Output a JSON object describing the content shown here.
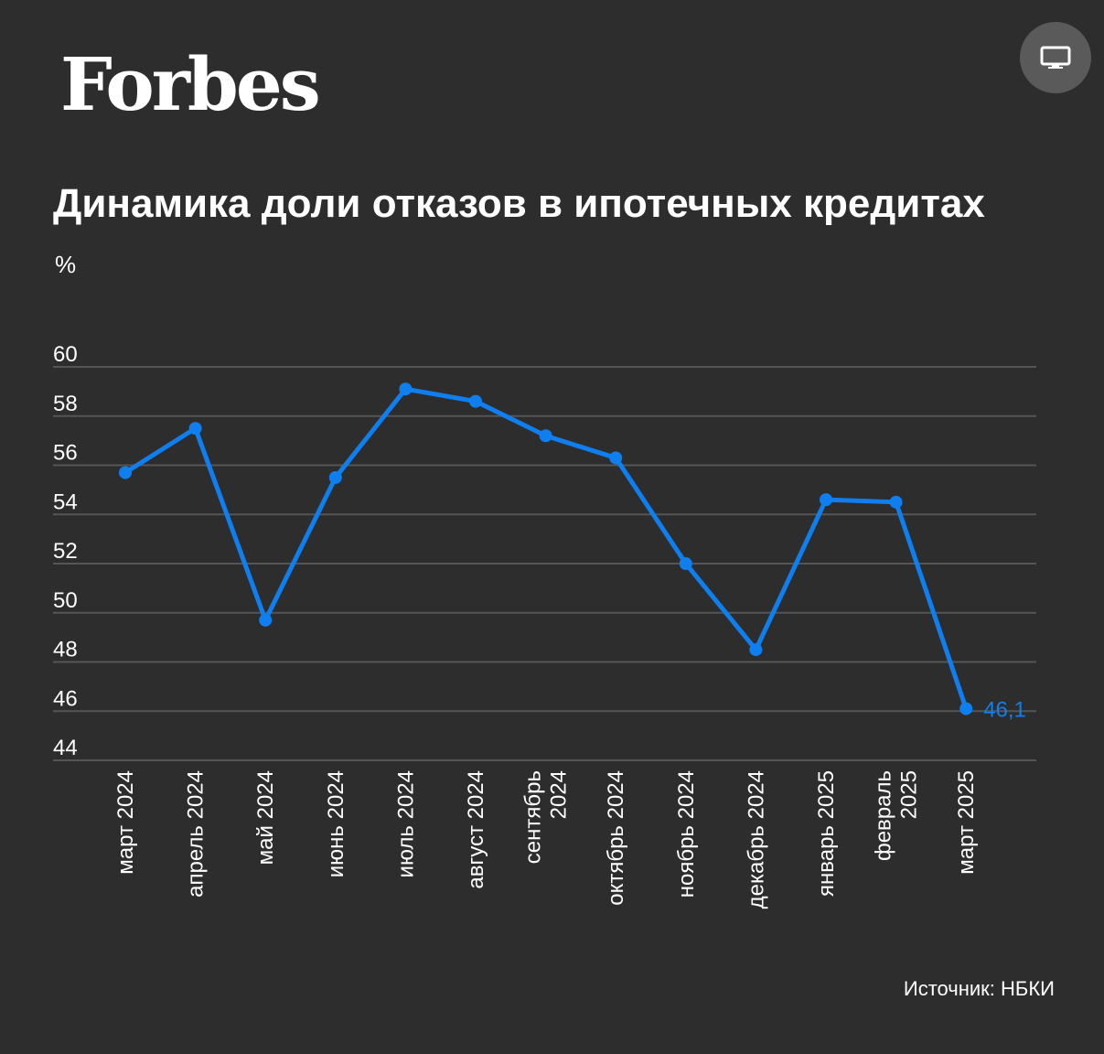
{
  "brand": {
    "logo_text": "Forbes"
  },
  "controls": {
    "device_icon": "monitor-icon"
  },
  "chart_data": {
    "type": "line",
    "title": "Динамика доли отказов в ипотечных кредитах",
    "ylabel": "%",
    "xlabel": "",
    "ylim": [
      44,
      60
    ],
    "yticks": [
      60,
      58,
      56,
      54,
      52,
      50,
      48,
      46,
      44
    ],
    "grid": true,
    "categories": [
      [
        "март 2024"
      ],
      [
        "апрель 2024"
      ],
      [
        "май 2024"
      ],
      [
        "июнь 2024"
      ],
      [
        "июль 2024"
      ],
      [
        "август 2024"
      ],
      [
        "сентябрь",
        "2024"
      ],
      [
        "октябрь 2024"
      ],
      [
        "ноябрь 2024"
      ],
      [
        "декабрь 2024"
      ],
      [
        "январь 2025"
      ],
      [
        "февраль",
        "2025"
      ],
      [
        "март 2025"
      ]
    ],
    "series": [
      {
        "values": [
          55.7,
          57.5,
          49.7,
          55.5,
          59.1,
          58.6,
          57.2,
          56.3,
          52.0,
          48.5,
          54.6,
          54.5,
          46.1
        ],
        "color": "#0f7ff0"
      }
    ],
    "data_labels": [
      {
        "index": 12,
        "text": "46,1"
      }
    ],
    "source": "Источник: НБКИ"
  }
}
